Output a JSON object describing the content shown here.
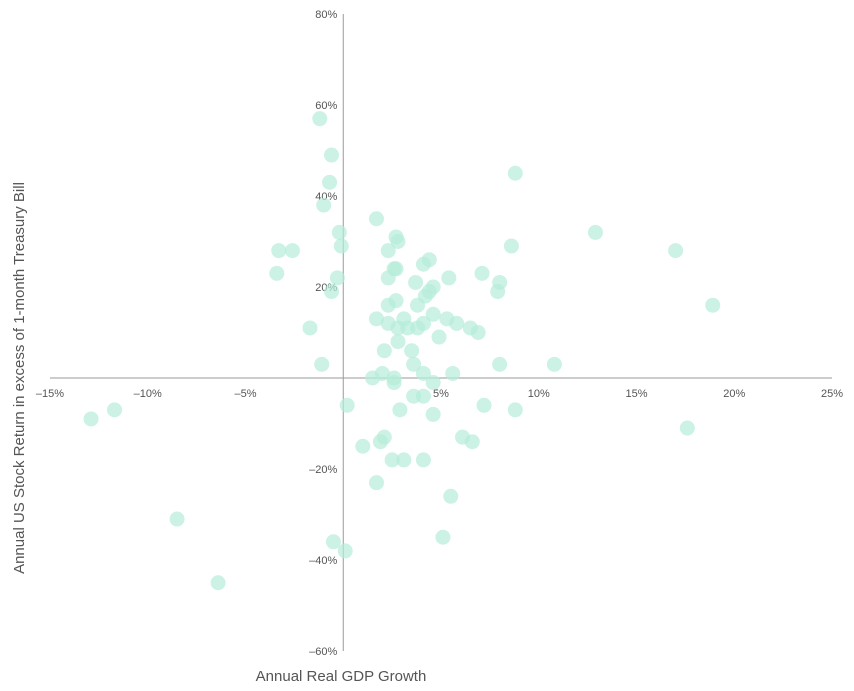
{
  "chart_data": {
    "type": "scatter",
    "title": "",
    "xlabel": "Annual Real GDP Growth",
    "ylabel": "Annual US Stock Return in excess of 1-month Treasury Bill",
    "xlim": [
      -15,
      25
    ],
    "ylim": [
      -60,
      80
    ],
    "x_ticks": [
      -15,
      -10,
      -5,
      0,
      5,
      10,
      15,
      20,
      25
    ],
    "x_tick_labels": [
      "–15%",
      "–10%",
      "–5%",
      "",
      "5%",
      "10%",
      "15%",
      "20%",
      "25%"
    ],
    "y_ticks": [
      -60,
      -40,
      -20,
      20,
      40,
      60,
      80
    ],
    "y_tick_labels": [
      "–60%",
      "–40%",
      "–20%",
      "20%",
      "40%",
      "60%",
      "80%"
    ],
    "grid": false,
    "legend": "none",
    "point_color": "#b5ecd9",
    "point_opacity": 0.7,
    "points": [
      [
        -1.2,
        57
      ],
      [
        -0.6,
        49
      ],
      [
        -0.7,
        43
      ],
      [
        -1.0,
        38
      ],
      [
        8.8,
        45
      ],
      [
        -0.2,
        32
      ],
      [
        -0.1,
        29
      ],
      [
        -3.3,
        28
      ],
      [
        -2.6,
        28
      ],
      [
        -3.4,
        23
      ],
      [
        -0.3,
        22
      ],
      [
        -0.6,
        19
      ],
      [
        -1.7,
        11
      ],
      [
        -1.1,
        3
      ],
      [
        1.7,
        35
      ],
      [
        2.7,
        31
      ],
      [
        2.8,
        30
      ],
      [
        2.3,
        28
      ],
      [
        4.4,
        26
      ],
      [
        4.1,
        25
      ],
      [
        2.6,
        24
      ],
      [
        2.7,
        24
      ],
      [
        2.3,
        22
      ],
      [
        3.7,
        21
      ],
      [
        5.4,
        22
      ],
      [
        4.6,
        20
      ],
      [
        4.4,
        19
      ],
      [
        4.2,
        18
      ],
      [
        2.7,
        17
      ],
      [
        2.3,
        16
      ],
      [
        3.8,
        16
      ],
      [
        1.7,
        13
      ],
      [
        3.1,
        13
      ],
      [
        4.6,
        14
      ],
      [
        5.3,
        13
      ],
      [
        5.8,
        12
      ],
      [
        2.3,
        12
      ],
      [
        2.8,
        11
      ],
      [
        3.3,
        11
      ],
      [
        3.8,
        11
      ],
      [
        4.1,
        12
      ],
      [
        6.5,
        11
      ],
      [
        6.9,
        10
      ],
      [
        2.8,
        8
      ],
      [
        4.9,
        9
      ],
      [
        2.1,
        6
      ],
      [
        3.5,
        6
      ],
      [
        3.6,
        3
      ],
      [
        8.0,
        3
      ],
      [
        10.8,
        3
      ],
      [
        1.5,
        0
      ],
      [
        2.0,
        1
      ],
      [
        2.6,
        0
      ],
      [
        4.1,
        1
      ],
      [
        5.6,
        1
      ],
      [
        2.6,
        -1
      ],
      [
        4.6,
        -1
      ],
      [
        3.6,
        -4
      ],
      [
        4.1,
        -4
      ],
      [
        7.1,
        23
      ],
      [
        8.0,
        21
      ],
      [
        7.9,
        19
      ],
      [
        8.6,
        29
      ],
      [
        12.9,
        32
      ],
      [
        17.0,
        28
      ],
      [
        18.9,
        16
      ],
      [
        0.2,
        -6
      ],
      [
        2.9,
        -7
      ],
      [
        4.6,
        -8
      ],
      [
        7.2,
        -6
      ],
      [
        8.8,
        -7
      ],
      [
        17.6,
        -11
      ],
      [
        -12.9,
        -9
      ],
      [
        -11.7,
        -7
      ],
      [
        1.0,
        -15
      ],
      [
        1.9,
        -14
      ],
      [
        2.1,
        -13
      ],
      [
        2.5,
        -18
      ],
      [
        3.1,
        -18
      ],
      [
        4.1,
        -18
      ],
      [
        6.1,
        -13
      ],
      [
        6.6,
        -14
      ],
      [
        1.7,
        -23
      ],
      [
        5.5,
        -26
      ],
      [
        -0.5,
        -36
      ],
      [
        0.1,
        -38
      ],
      [
        5.1,
        -35
      ],
      [
        -8.5,
        -31
      ],
      [
        -6.4,
        -45
      ]
    ]
  }
}
